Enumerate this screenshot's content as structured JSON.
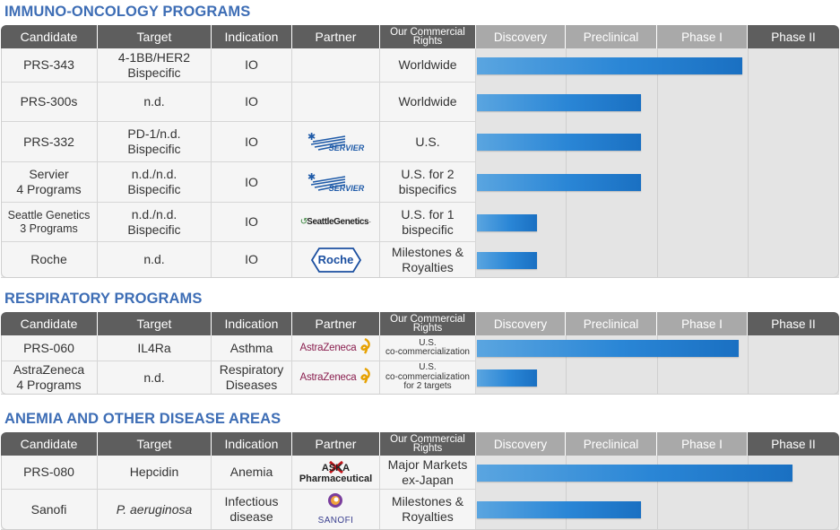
{
  "headers": {
    "candidate": "Candidate",
    "target": "Target",
    "indication": "Indication",
    "partner": "Partner",
    "rights_line1": "Our Commercial",
    "rights_line2": "Rights",
    "discovery": "Discovery",
    "preclinical": "Preclinical",
    "phase1": "Phase I",
    "phase2": "Phase II"
  },
  "sections": [
    {
      "title": "IMMUNO-ONCOLOGY PROGRAMS",
      "rows": [
        {
          "candidate": [
            "PRS-343"
          ],
          "target": [
            "4-1BB/HER2",
            "Bispecific"
          ],
          "indication": [
            "IO"
          ],
          "partner": "",
          "partner_logo": "",
          "rights": [
            "Worldwide"
          ],
          "progress": 0.84
        },
        {
          "candidate": [
            "PRS-300s"
          ],
          "target": [
            "n.d."
          ],
          "indication": [
            "IO"
          ],
          "partner": "",
          "partner_logo": "",
          "rights": [
            "Worldwide"
          ],
          "progress": 0.52
        },
        {
          "candidate": [
            "PRS-332"
          ],
          "target": [
            "PD-1/n.d.",
            "Bispecific"
          ],
          "indication": [
            "IO"
          ],
          "partner": "SERVIER",
          "partner_logo": "servier-logo",
          "rights": [
            "U.S."
          ],
          "progress": 0.52
        },
        {
          "candidate": [
            "Servier",
            "4 Programs"
          ],
          "target": [
            "n.d./n.d.",
            "Bispecific"
          ],
          "indication": [
            "IO"
          ],
          "partner": "SERVIER",
          "partner_logo": "servier-logo",
          "rights": [
            "U.S. for 2",
            "bispecifics"
          ],
          "progress": 0.52
        },
        {
          "candidate": [
            "Seattle Genetics",
            "3 Programs"
          ],
          "target": [
            "n.d./n.d.",
            "Bispecific"
          ],
          "indication": [
            "IO"
          ],
          "partner": "SeattleGenetics",
          "partner_logo": "seattle-genetics-logo",
          "rights": [
            "U.S. for 1",
            "bispecific"
          ],
          "progress": 0.19
        },
        {
          "candidate": [
            "Roche"
          ],
          "target": [
            "n.d."
          ],
          "indication": [
            "IO"
          ],
          "partner": "Roche",
          "partner_logo": "roche-logo",
          "rights": [
            "Milestones &",
            "Royalties"
          ],
          "progress": 0.19
        }
      ]
    },
    {
      "title": "RESPIRATORY PROGRAMS",
      "rows": [
        {
          "candidate": [
            "PRS-060"
          ],
          "target": [
            "IL4Ra"
          ],
          "indication": [
            "Asthma"
          ],
          "partner": "AstraZeneca",
          "partner_logo": "astrazeneca-logo",
          "rights": [
            "U.S.",
            "co-commercialization"
          ],
          "progress": 0.83
        },
        {
          "candidate": [
            "AstraZeneca",
            "4 Programs"
          ],
          "target": [
            "n.d."
          ],
          "indication": [
            "Respiratory",
            "Diseases"
          ],
          "partner": "AstraZeneca",
          "partner_logo": "astrazeneca-logo",
          "rights": [
            "U.S.",
            "co-commercialization",
            "for 2 targets"
          ],
          "progress": 0.19
        }
      ]
    },
    {
      "title": "ANEMIA AND OTHER DISEASE AREAS",
      "rows": [
        {
          "candidate": [
            "PRS-080"
          ],
          "target": [
            "Hepcidin"
          ],
          "indication": [
            "Anemia"
          ],
          "partner": "ASKA Pharmaceutical",
          "partner_logo": "aska-logo",
          "rights": [
            "Major Markets",
            "ex-Japan"
          ],
          "progress": 1.0
        },
        {
          "candidate": [
            "Sanofi"
          ],
          "target": [
            "P. aeruginosa"
          ],
          "target_italic": true,
          "indication": [
            "Infectious",
            "disease"
          ],
          "partner": "SANOFI",
          "partner_logo": "sanofi-logo",
          "rights": [
            "Milestones &",
            "Royalties"
          ],
          "progress": 0.52
        }
      ]
    }
  ],
  "colors": {
    "title": "#3d6db5",
    "header_dark": "#5e5e5e",
    "header_phase": "#a9a9a9",
    "bar": "#2a86d6"
  }
}
